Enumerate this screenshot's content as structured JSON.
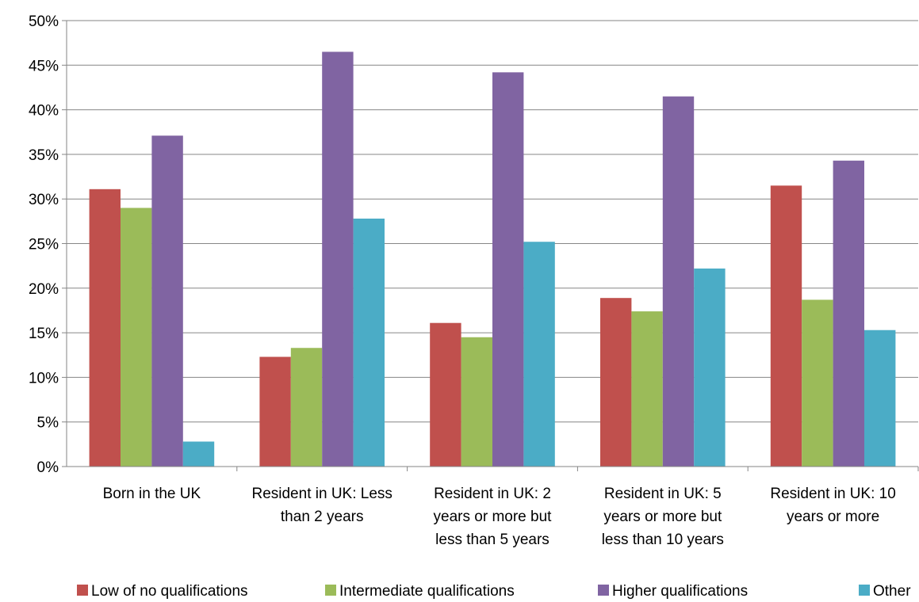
{
  "chart_data": {
    "type": "bar",
    "categories": [
      [
        "Born in the UK"
      ],
      [
        "Resident in UK: Less",
        "than 2 years"
      ],
      [
        "Resident in UK: 2",
        "years or more but",
        "less than 5 years"
      ],
      [
        "Resident in UK: 5",
        "years or more but",
        "less than 10 years"
      ],
      [
        "Resident in UK: 10",
        "years or more"
      ]
    ],
    "series": [
      {
        "name": "Low of no qualifications",
        "color": "#C0504D",
        "values": [
          31.1,
          12.3,
          16.1,
          18.9,
          31.5
        ]
      },
      {
        "name": "Intermediate qualifications",
        "color": "#9BBB59",
        "values": [
          29.0,
          13.3,
          14.5,
          17.4,
          18.7
        ]
      },
      {
        "name": "Higher qualifications",
        "color": "#8064A2",
        "values": [
          37.1,
          46.5,
          44.2,
          41.5,
          34.3
        ]
      },
      {
        "name": "Other",
        "color": "#4BACC6",
        "values": [
          2.8,
          27.8,
          25.2,
          22.2,
          15.3
        ]
      }
    ],
    "y_ticks": [
      "0%",
      "5%",
      "10%",
      "15%",
      "20%",
      "25%",
      "30%",
      "35%",
      "40%",
      "45%",
      "50%"
    ],
    "ylim": [
      0,
      50
    ],
    "ytick_step": 5,
    "grid": true,
    "legend_position": "bottom"
  }
}
